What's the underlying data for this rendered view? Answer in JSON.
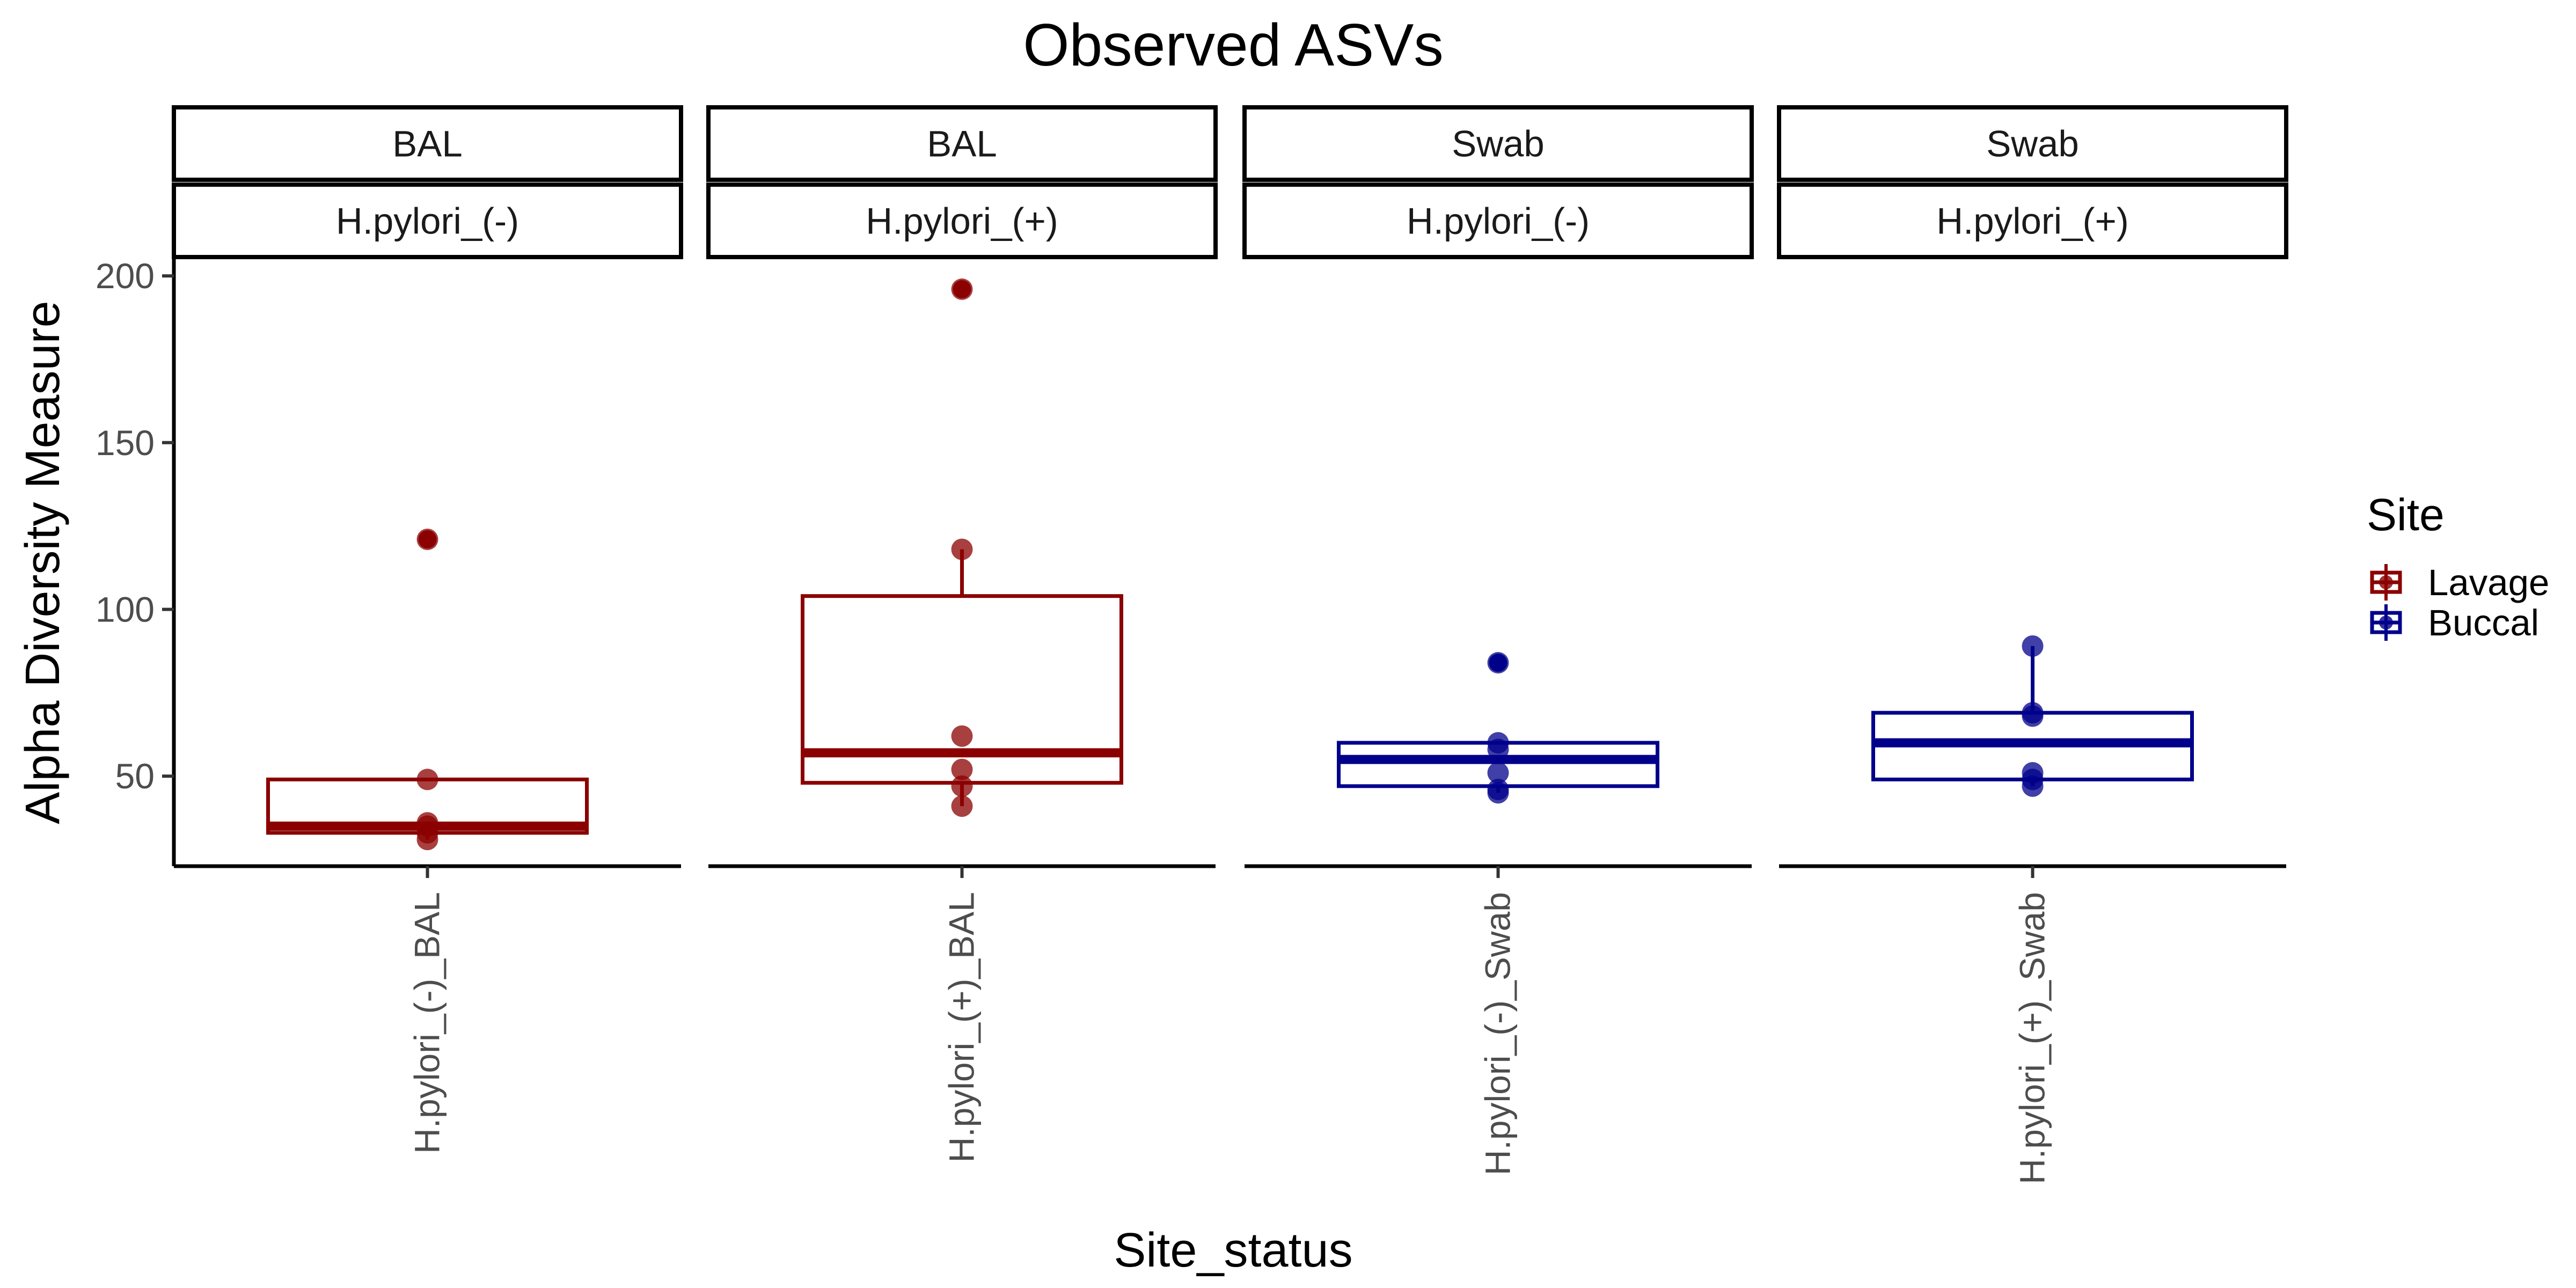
{
  "chart_data": {
    "type": "boxplot",
    "title": "Observed ASVs",
    "xlabel": "Site_status",
    "ylabel": "Alpha Diversity Measure",
    "ylim": [
      23,
      205
    ],
    "yticks": [
      50,
      100,
      150,
      200
    ],
    "grid": false,
    "legend": {
      "title": "Site",
      "position": "right",
      "entries": [
        {
          "label": "Lavage",
          "color": "#8B0000"
        },
        {
          "label": "Buccal",
          "color": "#00008B"
        }
      ]
    },
    "panels": [
      {
        "strip_top": "BAL",
        "strip_bottom": "H.pylori_(-)",
        "category": "H.pylori_(-)_BAL",
        "site": "Lavage",
        "box": {
          "min": 31,
          "q1": 33,
          "median": 35,
          "q3": 49,
          "max": 49
        },
        "points": [
          121,
          49,
          36,
          35,
          33,
          31
        ],
        "outliers": [
          121
        ]
      },
      {
        "strip_top": "BAL",
        "strip_bottom": "H.pylori_(+)",
        "category": "H.pylori_(+)_BAL",
        "site": "Lavage",
        "box": {
          "min": 41,
          "q1": 48,
          "median": 57,
          "q3": 104,
          "max": 118
        },
        "points": [
          196,
          118,
          62,
          52,
          47,
          41
        ],
        "outliers": [
          196
        ]
      },
      {
        "strip_top": "Swab",
        "strip_bottom": "H.pylori_(-)",
        "category": "H.pylori_(-)_Swab",
        "site": "Buccal",
        "box": {
          "min": 45,
          "q1": 47,
          "median": 55,
          "q3": 60,
          "max": 60
        },
        "points": [
          84,
          60,
          58,
          51,
          46,
          45
        ],
        "outliers": [
          84
        ]
      },
      {
        "strip_top": "Swab",
        "strip_bottom": "H.pylori_(+)",
        "category": "H.pylori_(+)_Swab",
        "site": "Buccal",
        "box": {
          "min": 47,
          "q1": 49,
          "median": 60,
          "q3": 69,
          "max": 89
        },
        "points": [
          89,
          69,
          68,
          51,
          49,
          47
        ],
        "outliers": []
      }
    ]
  }
}
